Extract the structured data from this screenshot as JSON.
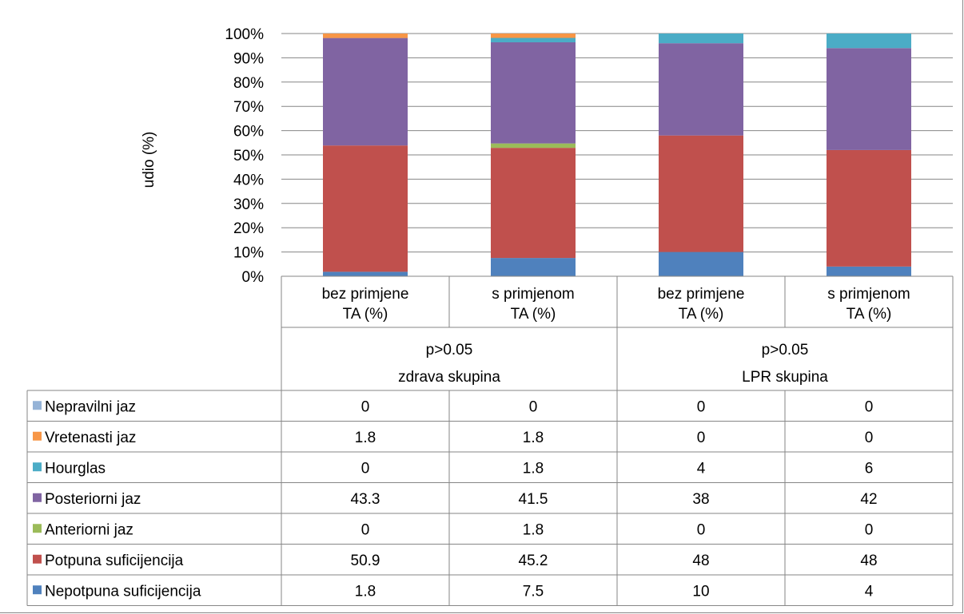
{
  "chart_data": {
    "type": "bar",
    "stacked": true,
    "percent_stacked": true,
    "ylabel": "udio (%)",
    "ylim": [
      0,
      100
    ],
    "yticks": [
      "0%",
      "10%",
      "20%",
      "30%",
      "40%",
      "50%",
      "60%",
      "70%",
      "80%",
      "90%",
      "100%"
    ],
    "grid": true,
    "legend": "data-table-left",
    "categories": [
      [
        "bez primjene",
        "TA (%)"
      ],
      [
        "s primjenom",
        "TA (%)"
      ],
      [
        "bez primjene",
        "TA (%)"
      ],
      [
        "s primjenom",
        "TA (%)"
      ]
    ],
    "groups": [
      {
        "pvalue": "p>0.05",
        "name": "zdrava skupina"
      },
      {
        "pvalue": "p>0.05",
        "name": "LPR skupina"
      }
    ],
    "series": [
      {
        "name": "Nepotpuna suficijencija",
        "color": "#4F81BD",
        "values": [
          1.8,
          7.5,
          10,
          4
        ],
        "labels": [
          "1.8",
          "7.5",
          "10",
          "4"
        ]
      },
      {
        "name": "Potpuna suficijencija",
        "color": "#C0504D",
        "values": [
          50.9,
          45.2,
          48,
          48
        ],
        "labels": [
          "50.9",
          "45.2",
          "48",
          "48"
        ]
      },
      {
        "name": "Anteriorni jaz",
        "color": "#9BBB59",
        "values": [
          0,
          1.8,
          0,
          0
        ],
        "labels": [
          "0",
          "1.8",
          "0",
          "0"
        ]
      },
      {
        "name": "Posteriorni jaz",
        "color": "#8064A2",
        "values": [
          43.3,
          41.5,
          38,
          42
        ],
        "labels": [
          "43.3",
          "41.5",
          "38",
          "42"
        ]
      },
      {
        "name": "Hourglas",
        "color": "#4BACC6",
        "values": [
          0,
          1.8,
          4,
          6
        ],
        "labels": [
          "0",
          "1.8",
          "4",
          "6"
        ]
      },
      {
        "name": "Vretenasti jaz",
        "color": "#F79646",
        "values": [
          1.8,
          1.8,
          0,
          0
        ],
        "labels": [
          "1.8",
          "1.8",
          "0",
          "0"
        ]
      },
      {
        "name": "Nepravilni jaz",
        "color": "#95B3D7",
        "values": [
          0,
          0,
          0,
          0
        ],
        "labels": [
          "0",
          "0",
          "0",
          "0"
        ]
      }
    ]
  }
}
